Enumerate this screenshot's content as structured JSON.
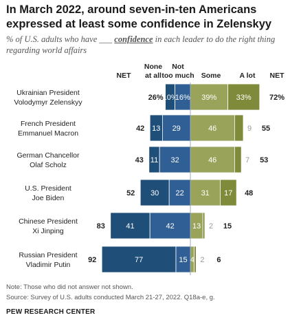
{
  "title": "In March 2022, around seven-in-ten Americans expressed at least some confidence in Zelenskyy",
  "subtitle": {
    "before": "% of U.S. adults who have ",
    "blank": "___",
    "confidence": "confidence",
    "after": " in each leader to do the right thing regarding world affairs"
  },
  "note": "Note: Those who did not answer not shown.",
  "source": "Source: Survey of U.S. adults conducted March 21-27, 2022. Q18a-e, g.",
  "brand": "PEW RESEARCH CENTER",
  "colors": {
    "none_at_all": "#1f4e79",
    "not_too_much": "#2f5f95",
    "some": "#9aa35a",
    "a_lot": "#7f8a3a",
    "faint_text": "#999999",
    "center_line": "#9aa9c8"
  },
  "chart_data": {
    "type": "bar",
    "orientation": "horizontal-diverging",
    "column_headers": {
      "net_negative": "NET",
      "none_at_all": "None at all",
      "not_too_much": "Not too much",
      "some": "Some",
      "a_lot": "A lot",
      "net_positive": "NET"
    },
    "categories": [
      [
        "Ukrainian President",
        "Volodymyr Zelenskyy"
      ],
      [
        "French President",
        "Emmanuel Macron"
      ],
      [
        "German Chancellor",
        "Olaf Scholz"
      ],
      [
        "U.S. President",
        "Joe Biden"
      ],
      [
        "Chinese President",
        "Xi Jinping"
      ],
      [
        "Russian President",
        "Vladimir Putin"
      ]
    ],
    "series": [
      {
        "name": "None at all",
        "values": [
          10,
          13,
          11,
          30,
          41,
          77
        ],
        "labels": [
          "10%",
          "13",
          "11",
          "30",
          "41",
          "77"
        ]
      },
      {
        "name": "Not too much",
        "values": [
          16,
          29,
          32,
          22,
          42,
          15
        ],
        "labels": [
          "16%",
          "29",
          "32",
          "22",
          "42",
          "15"
        ]
      },
      {
        "name": "Some",
        "values": [
          39,
          46,
          46,
          31,
          13,
          4
        ],
        "labels": [
          "39%",
          "46",
          "46",
          "31",
          "13",
          "4"
        ]
      },
      {
        "name": "A lot",
        "values": [
          33,
          9,
          7,
          17,
          2,
          2
        ],
        "labels": [
          "33%",
          "9",
          "7",
          "17",
          "2",
          "2"
        ]
      }
    ],
    "net_negative": [
      26,
      42,
      43,
      52,
      83,
      92
    ],
    "net_negative_labels": [
      "26%",
      "42",
      "43",
      "52",
      "83",
      "92"
    ],
    "net_positive": [
      72,
      55,
      53,
      48,
      15,
      6
    ],
    "net_positive_labels": [
      "72%",
      "55",
      "53",
      "48",
      "15",
      "6"
    ]
  }
}
